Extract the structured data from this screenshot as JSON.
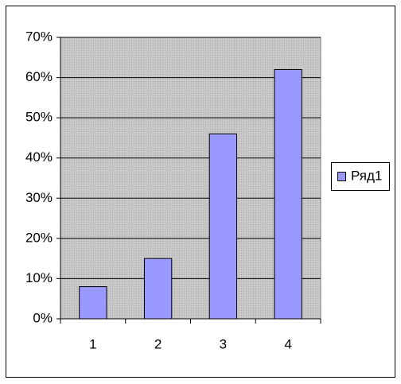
{
  "chart_data": {
    "type": "bar",
    "categories": [
      "1",
      "2",
      "3",
      "4"
    ],
    "series": [
      {
        "name": "Ряд1",
        "color": "#9999ff",
        "values": [
          8,
          15,
          46,
          62
        ]
      }
    ],
    "ylim": [
      0,
      70
    ],
    "yticks": [
      {
        "value": 0,
        "label": "0%"
      },
      {
        "value": 10,
        "label": "10%"
      },
      {
        "value": 20,
        "label": "20%"
      },
      {
        "value": 30,
        "label": "30%"
      },
      {
        "value": 40,
        "label": "40%"
      },
      {
        "value": 50,
        "label": "50%"
      },
      {
        "value": 60,
        "label": "60%"
      },
      {
        "value": 70,
        "label": "70%"
      }
    ],
    "grid": true,
    "legend": "right"
  }
}
